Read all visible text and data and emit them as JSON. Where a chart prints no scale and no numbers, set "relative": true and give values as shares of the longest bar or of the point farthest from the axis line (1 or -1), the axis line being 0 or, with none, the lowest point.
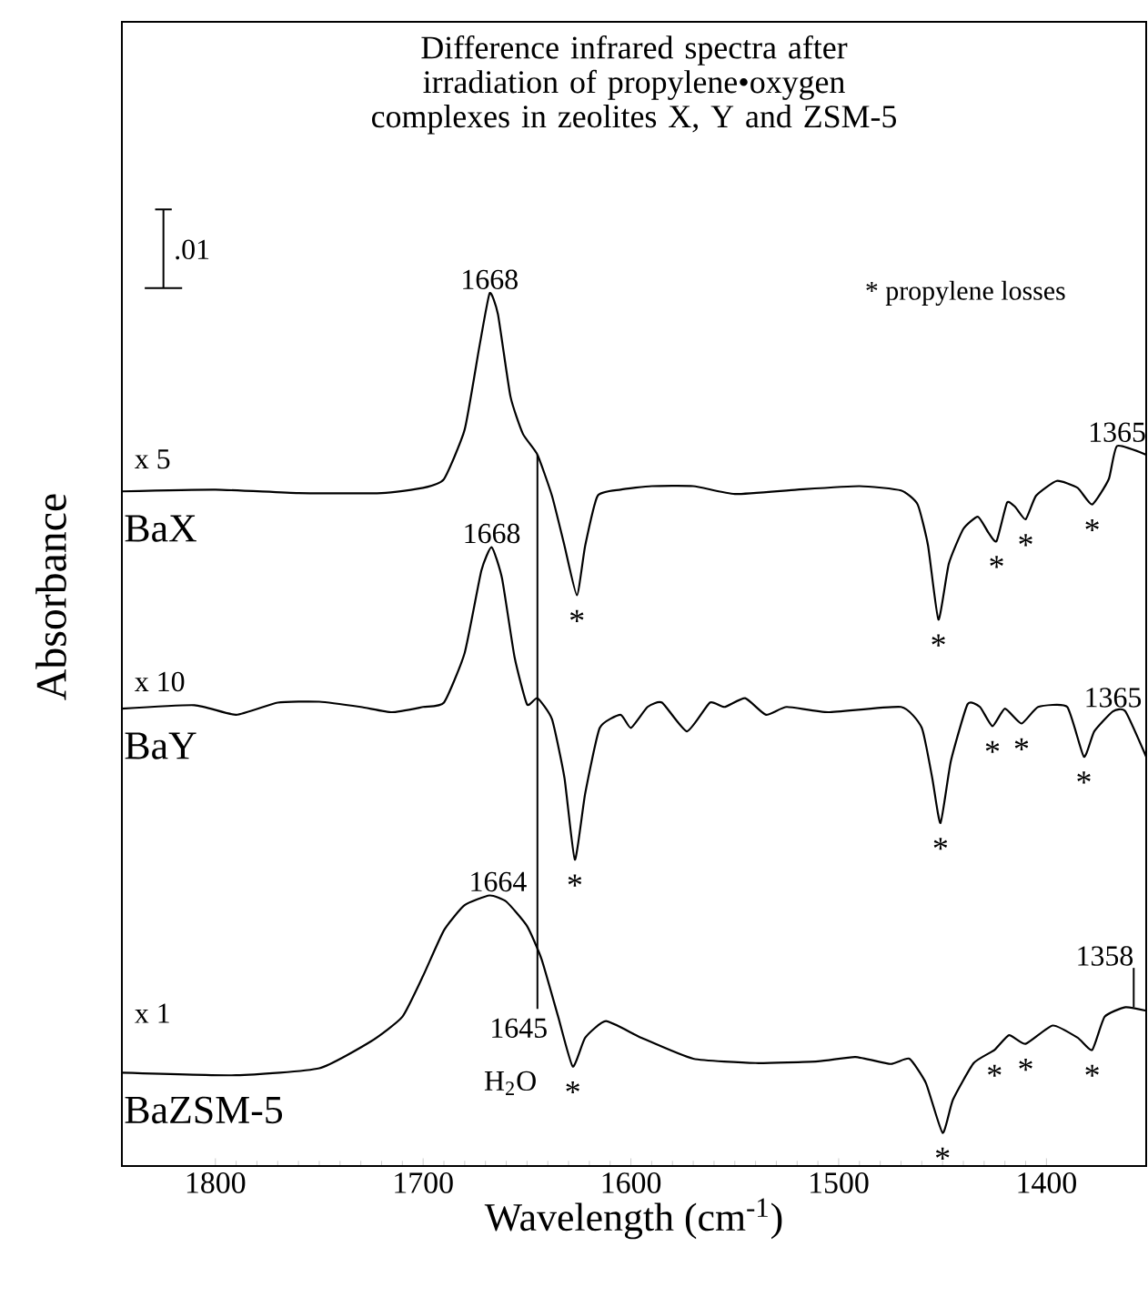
{
  "chart_data": {
    "type": "line",
    "relative": true,
    "title": "Difference infrared spectra after irradiation of propylene•oxygen complexes in zeolites X, Y and ZSM-5",
    "xlabel": "Wavelength (cm$^{-1}$)",
    "ylabel": "Absorbance",
    "xlim": [
      1845,
      1352
    ],
    "xticks": [
      1800,
      1700,
      1600,
      1500,
      1400
    ],
    "grid": false,
    "marker": "none",
    "line_style": "solid",
    "series": [
      {
        "name": "BaX",
        "color": "#000000",
        "x": [
          1845,
          1800,
          1760,
          1720,
          1700,
          1690,
          1680,
          1673,
          1668,
          1664,
          1658,
          1652,
          1645,
          1638,
          1632,
          1626,
          1622,
          1616,
          1605,
          1590,
          1570,
          1550,
          1520,
          1490,
          1470,
          1462,
          1457,
          1452,
          1447,
          1440,
          1433,
          1428,
          1424,
          1419,
          1415,
          1410,
          1405,
          1395,
          1385,
          1378,
          1370,
          1366,
          1352
        ],
        "values": [
          0.773,
          0.775,
          0.771,
          0.771,
          0.777,
          0.787,
          0.844,
          0.938,
          1.0,
          0.976,
          0.882,
          0.839,
          0.815,
          0.768,
          0.711,
          0.654,
          0.711,
          0.768,
          0.775,
          0.779,
          0.779,
          0.77,
          0.775,
          0.779,
          0.774,
          0.758,
          0.711,
          0.626,
          0.69,
          0.73,
          0.744,
          0.726,
          0.716,
          0.76,
          0.755,
          0.741,
          0.768,
          0.785,
          0.777,
          0.758,
          0.787,
          0.825,
          0.815
        ]
      },
      {
        "name": "BaY",
        "color": "#000000",
        "x": [
          1845,
          1810,
          1790,
          1770,
          1750,
          1730,
          1715,
          1700,
          1690,
          1680,
          1672,
          1667,
          1662,
          1656,
          1650,
          1645,
          1638,
          1632,
          1627,
          1622,
          1615,
          1605,
          1600,
          1592,
          1585,
          1573,
          1562,
          1555,
          1545,
          1535,
          1525,
          1505,
          1470,
          1460,
          1455,
          1451,
          1446,
          1438,
          1432,
          1426,
          1420,
          1412,
          1404,
          1390,
          1382,
          1377,
          1368,
          1362,
          1352
        ],
        "values": [
          0.524,
          0.528,
          0.517,
          0.531,
          0.532,
          0.526,
          0.52,
          0.526,
          0.531,
          0.588,
          0.682,
          0.709,
          0.673,
          0.583,
          0.529,
          0.536,
          0.512,
          0.445,
          0.351,
          0.427,
          0.502,
          0.517,
          0.502,
          0.526,
          0.531,
          0.498,
          0.531,
          0.526,
          0.536,
          0.517,
          0.526,
          0.52,
          0.526,
          0.502,
          0.445,
          0.393,
          0.464,
          0.529,
          0.526,
          0.504,
          0.524,
          0.507,
          0.526,
          0.526,
          0.469,
          0.498,
          0.521,
          0.521,
          0.469
        ]
      },
      {
        "name": "BaZSM-5",
        "color": "#000000",
        "x": [
          1845,
          1790,
          1750,
          1725,
          1710,
          1700,
          1690,
          1680,
          1668,
          1660,
          1650,
          1643,
          1635,
          1628,
          1622,
          1612,
          1595,
          1570,
          1540,
          1510,
          1492,
          1475,
          1466,
          1458,
          1450,
          1445,
          1435,
          1425,
          1418,
          1410,
          1397,
          1385,
          1378,
          1372,
          1362,
          1352
        ],
        "values": [
          0.107,
          0.104,
          0.112,
          0.143,
          0.171,
          0.218,
          0.27,
          0.299,
          0.31,
          0.303,
          0.275,
          0.237,
          0.171,
          0.114,
          0.147,
          0.166,
          0.147,
          0.123,
          0.118,
          0.12,
          0.125,
          0.117,
          0.123,
          0.095,
          0.038,
          0.076,
          0.118,
          0.133,
          0.15,
          0.14,
          0.161,
          0.147,
          0.133,
          0.171,
          0.182,
          0.178
        ]
      }
    ],
    "annotations": [
      ".01",
      "* propylene losses",
      "x 5",
      "x 10",
      "x 1",
      {
        "text": "1668",
        "x": 1668,
        "y": 1.0
      },
      {
        "text": "1365",
        "x": 1366,
        "y": 0.825
      },
      {
        "text": "1668",
        "x": 1667,
        "y": 0.709
      },
      {
        "text": "1365",
        "x": 1368,
        "y": 0.521
      },
      {
        "text": "1664",
        "x": 1664,
        "y": 0.31
      },
      {
        "text": "1358",
        "x": 1358,
        "y": 0.182
      },
      {
        "text": "1645",
        "x": 1645,
        "y": 0.815
      },
      "H$_{2}$O",
      {
        "text": "*",
        "x": 1626,
        "y": 0.654
      },
      {
        "text": "*",
        "x": 1452,
        "y": 0.626
      },
      {
        "text": "*",
        "x": 1424,
        "y": 0.716
      },
      {
        "text": "*",
        "x": 1410,
        "y": 0.741
      },
      {
        "text": "*",
        "x": 1378,
        "y": 0.758
      },
      {
        "text": "*",
        "x": 1627,
        "y": 0.351
      },
      {
        "text": "*",
        "x": 1451,
        "y": 0.393
      },
      {
        "text": "*",
        "x": 1426,
        "y": 0.504
      },
      {
        "text": "*",
        "x": 1412,
        "y": 0.507
      },
      {
        "text": "*",
        "x": 1382,
        "y": 0.469
      },
      {
        "text": "*",
        "x": 1628,
        "y": 0.114
      },
      {
        "text": "*",
        "x": 1450,
        "y": 0.038
      },
      {
        "text": "*",
        "x": 1425,
        "y": 0.133
      },
      {
        "text": "*",
        "x": 1410,
        "y": 0.14
      },
      {
        "text": "*",
        "x": 1378,
        "y": 0.133
      }
    ]
  }
}
